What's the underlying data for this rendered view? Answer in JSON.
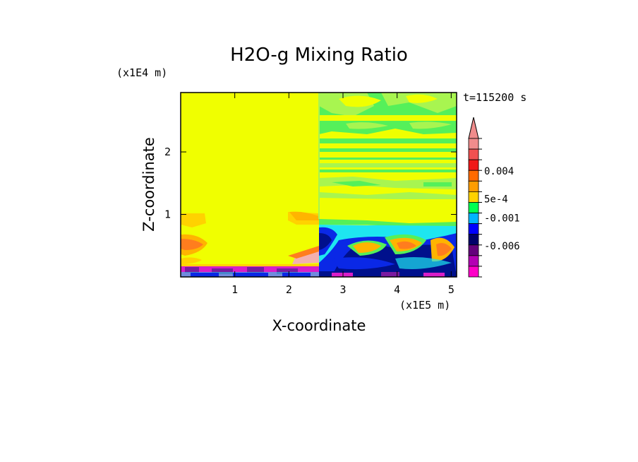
{
  "chart_data": {
    "type": "heatmap",
    "title": "H2O-g Mixing Ratio",
    "xlabel": "X-coordinate",
    "ylabel": "Z-coordinate",
    "x_scale_label": "(x1E5 m)",
    "y_scale_label": "(x1E4 m)",
    "time_label": "t=115200 s",
    "xlim": [
      0,
      5.1
    ],
    "ylim": [
      0,
      2.95
    ],
    "x_ticks": [
      "1",
      "2",
      "3",
      "4",
      "5"
    ],
    "y_ticks": [
      "1",
      "2"
    ],
    "colorbar": {
      "levels": [
        "+",
        "",
        "",
        "0.004",
        "",
        "",
        "5e-4",
        "-0.001",
        "",
        "",
        "-0.006",
        "",
        ""
      ],
      "labels": [
        "0.004",
        "5e-4",
        "-0.001",
        "-0.006"
      ],
      "colors": [
        "#f08c8c",
        "#f05050",
        "#f01818",
        "#ff6a00",
        "#ff9d00",
        "#ffd200",
        "#00ff50",
        "#00b4ff",
        "#0000ff",
        "#00006a",
        "#64007c",
        "#b400b4",
        "#ff00c8"
      ]
    },
    "background_value_color": "#f0ff00",
    "region_colors": {
      "dry_yellow": "#f0ff00",
      "green": "#55f05a",
      "light_green": "#a8f550",
      "orange": "#ffb400",
      "dark_orange": "#ff7d1e",
      "cyan": "#1ee6f0",
      "blue": "#0a28e6",
      "navy": "#00108c",
      "magenta": "#d81ec8",
      "pink": "#f3b0b0",
      "purple": "#7a1aa0"
    }
  }
}
